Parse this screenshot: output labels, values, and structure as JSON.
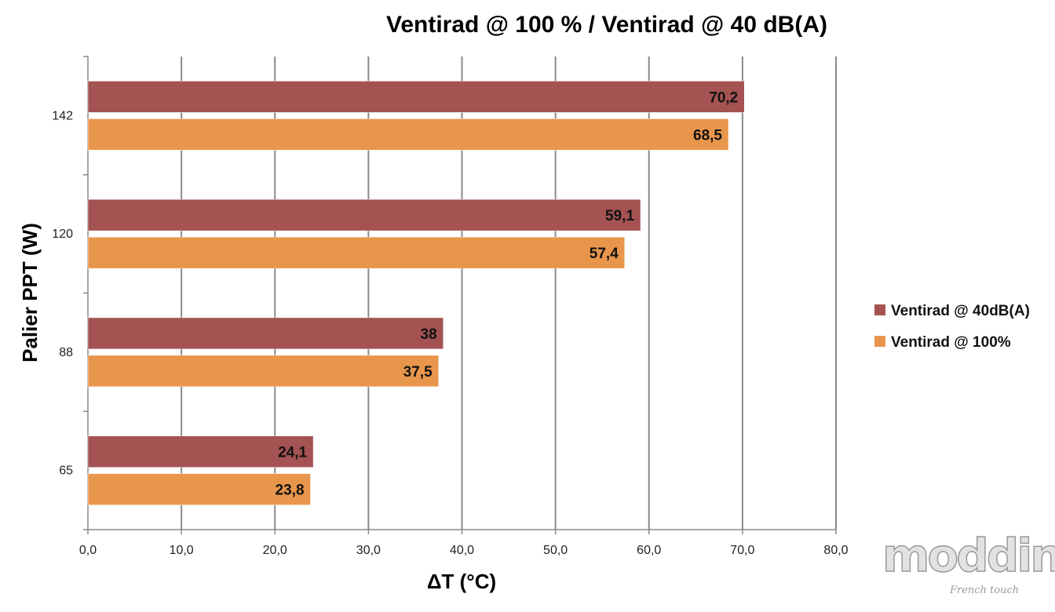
{
  "chart_data": {
    "type": "bar",
    "orientation": "horizontal",
    "title": "Ventirad @ 100 % / Ventirad @ 40 dB(A)",
    "xlabel": "ΔT (°C)",
    "ylabel": "Palier PPT (W)",
    "categories": [
      "65",
      "88",
      "120",
      "142"
    ],
    "series": [
      {
        "name": "Ventirad @ 40dB(A)",
        "color": "#a45252",
        "values": [
          24.1,
          38,
          59.1,
          70.2
        ],
        "labels": [
          "24,1",
          "38",
          "59,1",
          "70,2"
        ]
      },
      {
        "name": "Ventirad @ 100%",
        "color": "#e8964c",
        "values": [
          23.8,
          37.5,
          57.4,
          68.5
        ],
        "labels": [
          "23,8",
          "37,5",
          "57,4",
          "68,5"
        ]
      }
    ],
    "xlim": [
      0,
      80
    ],
    "x_ticks": [
      0,
      10,
      20,
      30,
      40,
      50,
      60,
      70,
      80
    ],
    "x_tick_labels": [
      "0,0",
      "10,0",
      "20,0",
      "30,0",
      "40,0",
      "50,0",
      "60,0",
      "70,0",
      "80,0"
    ],
    "grid": "vertical",
    "legend_position": "right"
  },
  "watermark": {
    "text": "modding.fr",
    "subtext": "French touch"
  }
}
